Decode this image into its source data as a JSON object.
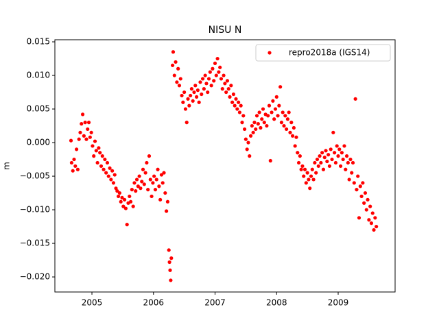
{
  "chart_data": {
    "type": "scatter",
    "title": "NISU N",
    "y_label": "m",
    "x": [
      2004.66,
      2004.67,
      2004.69,
      2004.71,
      2004.73,
      2004.75,
      2004.77,
      2004.79,
      2004.81,
      2004.83,
      2004.85,
      2004.87,
      2004.89,
      2004.91,
      2004.93,
      2004.95,
      2004.97,
      2004.99,
      2005.01,
      2005.03,
      2005.05,
      2005.07,
      2005.09,
      2005.11,
      2005.13,
      2005.15,
      2005.17,
      2005.19,
      2005.21,
      2005.23,
      2005.25,
      2005.27,
      2005.29,
      2005.31,
      2005.33,
      2005.35,
      2005.37,
      2005.39,
      2005.41,
      2005.43,
      2005.45,
      2005.47,
      2005.49,
      2005.51,
      2005.53,
      2005.55,
      2005.57,
      2005.59,
      2005.61,
      2005.63,
      2005.65,
      2005.67,
      2005.69,
      2005.71,
      2005.73,
      2005.75,
      2005.77,
      2005.79,
      2005.81,
      2005.83,
      2005.85,
      2005.87,
      2005.89,
      2005.91,
      2005.93,
      2005.95,
      2005.97,
      2005.99,
      2006.01,
      2006.03,
      2006.05,
      2006.07,
      2006.09,
      2006.11,
      2006.13,
      2006.15,
      2006.17,
      2006.19,
      2006.21,
      2006.23,
      2006.25,
      2006.26,
      2006.27,
      2006.28,
      2006.29,
      2006.31,
      2006.32,
      2006.34,
      2006.36,
      2006.38,
      2006.4,
      2006.42,
      2006.44,
      2006.46,
      2006.48,
      2006.5,
      2006.52,
      2006.54,
      2006.56,
      2006.58,
      2006.6,
      2006.62,
      2006.64,
      2006.66,
      2006.68,
      2006.7,
      2006.72,
      2006.74,
      2006.76,
      2006.78,
      2006.8,
      2006.82,
      2006.84,
      2006.86,
      2006.88,
      2006.9,
      2006.92,
      2006.94,
      2006.96,
      2006.98,
      2007.0,
      2007.02,
      2007.04,
      2007.06,
      2007.08,
      2007.1,
      2007.12,
      2007.14,
      2007.16,
      2007.18,
      2007.2,
      2007.22,
      2007.24,
      2007.26,
      2007.28,
      2007.3,
      2007.32,
      2007.34,
      2007.36,
      2007.38,
      2007.4,
      2007.42,
      2007.44,
      2007.46,
      2007.48,
      2007.5,
      2007.52,
      2007.54,
      2007.56,
      2007.58,
      2007.6,
      2007.62,
      2007.64,
      2007.66,
      2007.68,
      2007.7,
      2007.72,
      2007.74,
      2007.76,
      2007.78,
      2007.8,
      2007.82,
      2007.84,
      2007.86,
      2007.88,
      2007.9,
      2007.92,
      2007.94,
      2007.96,
      2007.98,
      2008.0,
      2008.02,
      2008.04,
      2008.06,
      2008.08,
      2008.1,
      2008.12,
      2008.14,
      2008.16,
      2008.18,
      2008.2,
      2008.22,
      2008.24,
      2008.26,
      2008.28,
      2008.3,
      2008.32,
      2008.34,
      2008.36,
      2008.38,
      2008.4,
      2008.42,
      2008.44,
      2008.46,
      2008.48,
      2008.5,
      2008.52,
      2008.54,
      2008.56,
      2008.58,
      2008.6,
      2008.62,
      2008.64,
      2008.66,
      2008.68,
      2008.7,
      2008.72,
      2008.74,
      2008.76,
      2008.78,
      2008.8,
      2008.82,
      2008.84,
      2008.86,
      2008.88,
      2008.9,
      2008.92,
      2008.94,
      2008.96,
      2008.98,
      2009.0,
      2009.02,
      2009.04,
      2009.06,
      2009.08,
      2009.1,
      2009.12,
      2009.14,
      2009.16,
      2009.18,
      2009.2,
      2009.22,
      2009.24,
      2009.26,
      2009.28,
      2009.3,
      2009.32,
      2009.34,
      2009.36,
      2009.38,
      2009.4,
      2009.42,
      2009.44,
      2009.46,
      2009.48,
      2009.5,
      2009.52,
      2009.54,
      2009.56,
      2009.58,
      2009.6,
      2009.62
    ],
    "series": [
      {
        "name": "repro2018a (IGS14)",
        "color": "#ff0000",
        "values": [
          0.0003,
          -0.003,
          -0.0042,
          -0.0025,
          -0.0035,
          -0.001,
          -0.004,
          0.0005,
          0.0015,
          0.0028,
          0.0042,
          0.001,
          0.003,
          0.0005,
          0.002,
          0.003,
          0.0008,
          0.0015,
          -0.0005,
          -0.002,
          0.0002,
          -0.0012,
          -0.003,
          -0.0008,
          -0.0015,
          -0.0035,
          -0.002,
          -0.004,
          -0.0025,
          -0.0045,
          -0.003,
          -0.005,
          -0.0038,
          -0.0055,
          -0.0042,
          -0.006,
          -0.0048,
          -0.0068,
          -0.0072,
          -0.008,
          -0.0075,
          -0.0088,
          -0.0082,
          -0.0095,
          -0.0085,
          -0.0098,
          -0.0122,
          -0.009,
          -0.008,
          -0.0088,
          -0.007,
          -0.0095,
          -0.006,
          -0.0072,
          -0.0055,
          -0.0065,
          -0.005,
          -0.0068,
          -0.0058,
          -0.004,
          -0.0062,
          -0.0045,
          -0.003,
          -0.007,
          -0.002,
          -0.0055,
          -0.008,
          -0.006,
          -0.005,
          -0.007,
          -0.0055,
          -0.004,
          -0.0065,
          -0.0085,
          -0.0048,
          -0.006,
          -0.0045,
          -0.0075,
          -0.0102,
          -0.0088,
          -0.016,
          -0.0178,
          -0.019,
          -0.0205,
          -0.0172,
          0.0115,
          0.0135,
          0.01,
          0.012,
          0.009,
          0.011,
          0.0085,
          0.0095,
          0.007,
          0.006,
          0.0075,
          0.005,
          0.003,
          0.0065,
          0.0055,
          0.007,
          0.008,
          0.0062,
          0.0075,
          0.0085,
          0.0068,
          0.0078,
          0.006,
          0.009,
          0.0072,
          0.0095,
          0.008,
          0.01,
          0.0088,
          0.0075,
          0.0095,
          0.0105,
          0.0085,
          0.011,
          0.0092,
          0.0118,
          0.01,
          0.0125,
          0.0105,
          0.0112,
          0.0095,
          0.008,
          0.01,
          0.0088,
          0.0075,
          0.0092,
          0.008,
          0.0068,
          0.0085,
          0.006,
          0.0072,
          0.0055,
          0.0065,
          0.005,
          0.006,
          0.0045,
          0.0055,
          0.003,
          0.004,
          0.002,
          0.0005,
          -0.001,
          0.0,
          -0.002,
          0.001,
          0.0025,
          0.0015,
          0.003,
          0.002,
          0.004,
          0.0028,
          0.0045,
          0.0022,
          0.0035,
          0.005,
          0.003,
          0.0042,
          0.0025,
          0.004,
          0.0055,
          -0.0027,
          0.0045,
          0.0062,
          0.0035,
          0.005,
          0.0068,
          0.004,
          0.0055,
          0.0083,
          0.003,
          0.0045,
          0.0025,
          0.004,
          0.002,
          0.0035,
          0.0045,
          0.0015,
          0.003,
          0.001,
          0.0022,
          -0.0005,
          0.0008,
          -0.0015,
          -0.003,
          -0.002,
          -0.004,
          -0.0035,
          -0.005,
          -0.004,
          -0.006,
          -0.0045,
          -0.0055,
          -0.0068,
          -0.005,
          -0.004,
          -0.0055,
          -0.003,
          -0.0045,
          -0.0025,
          -0.0035,
          -0.002,
          -0.003,
          -0.0015,
          -0.004,
          -0.0022,
          -0.0012,
          -0.0028,
          -0.0018,
          -0.0035,
          -0.001,
          -0.0025,
          0.0015,
          -0.0015,
          -0.003,
          -0.0005,
          -0.002,
          -0.001,
          -0.0035,
          -0.0015,
          -0.0025,
          -0.0005,
          -0.004,
          -0.002,
          -0.003,
          -0.0055,
          -0.0025,
          -0.0045,
          -0.003,
          -0.006,
          0.0065,
          -0.007,
          -0.005,
          -0.0112,
          -0.0065,
          -0.008,
          -0.006,
          -0.009,
          -0.0075,
          -0.01,
          -0.0085,
          -0.0115,
          -0.0095,
          -0.012,
          -0.0105,
          -0.013,
          -0.0112,
          -0.0125
        ]
      }
    ],
    "xlim": [
      2004.398,
      2009.925
    ],
    "xticks": [
      2005,
      2006,
      2007,
      2008,
      2009
    ],
    "ylim": [
      -0.02224,
      0.01531
    ],
    "yticks": [
      {
        "value": -0.02,
        "label": "−0.020"
      },
      {
        "value": -0.015,
        "label": "−0.015"
      },
      {
        "value": -0.01,
        "label": "−0.010"
      },
      {
        "value": -0.005,
        "label": "−0.005"
      },
      {
        "value": 0,
        "label": "0.000"
      },
      {
        "value": 0.005,
        "label": "0.005"
      },
      {
        "value": 0.01,
        "label": "0.010"
      },
      {
        "value": 0.015,
        "label": "0.015"
      }
    ],
    "legend": "upper right",
    "grid": false
  }
}
